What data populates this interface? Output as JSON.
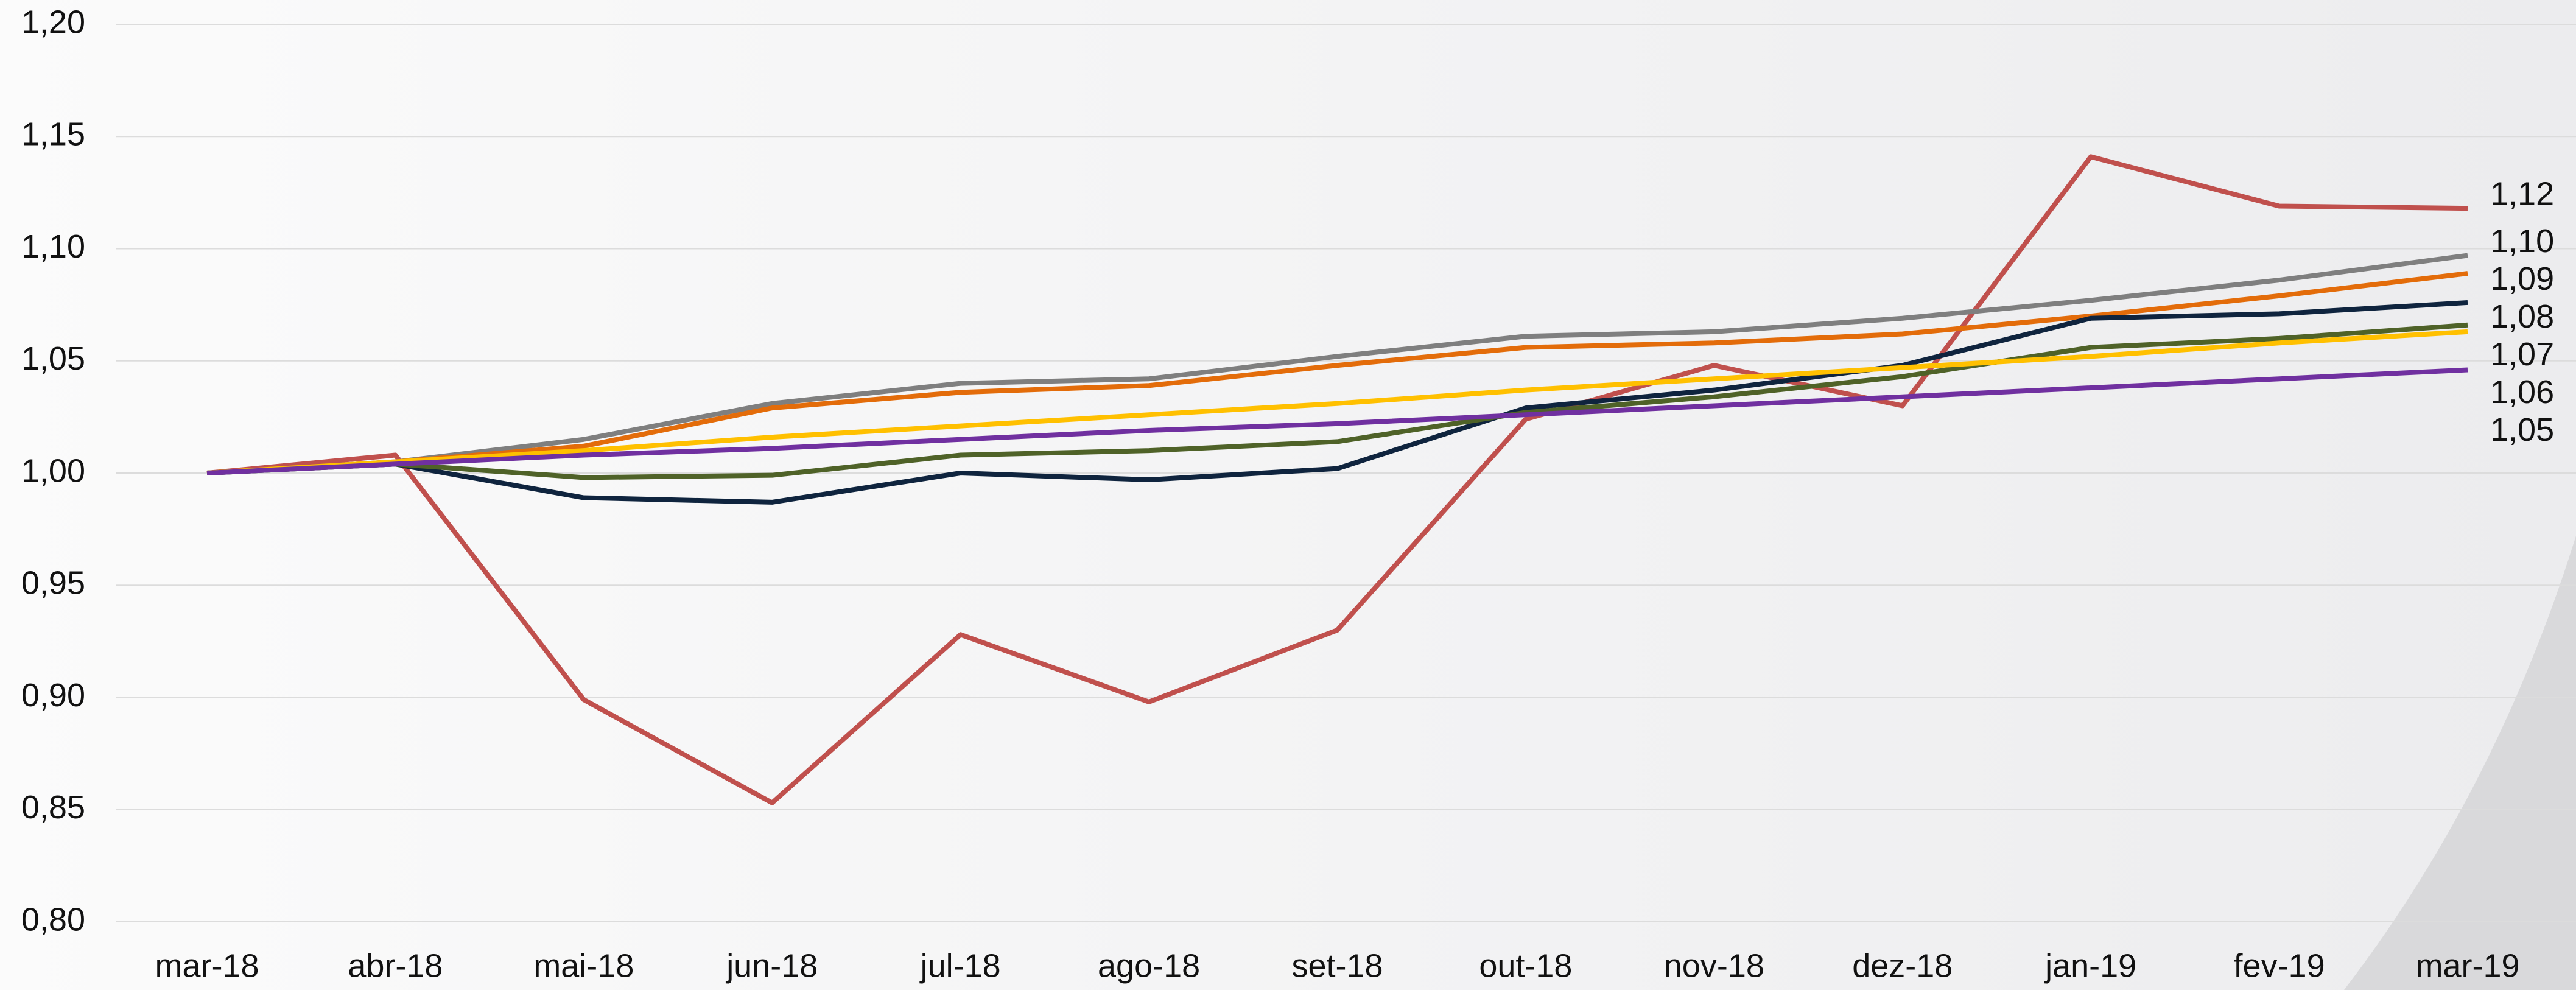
{
  "chart_data": {
    "type": "line",
    "categories": [
      "mar-18",
      "abr-18",
      "mai-18",
      "jun-18",
      "jul-18",
      "ago-18",
      "set-18",
      "out-18",
      "nov-18",
      "dez-18",
      "jan-19",
      "fev-19",
      "mar-19"
    ],
    "series": [
      {
        "color": "#c0504d",
        "values": [
          1.0,
          1.008,
          0.899,
          0.853,
          0.928,
          0.898,
          0.93,
          1.024,
          1.048,
          1.03,
          1.141,
          1.119,
          1.118
        ],
        "value_labels": [
          null,
          null,
          null,
          null,
          null,
          null,
          null,
          null,
          null,
          null,
          null,
          null,
          "1,12"
        ]
      },
      {
        "color": "#7f7f7f",
        "values": [
          1.0,
          1.005,
          1.015,
          1.031,
          1.04,
          1.042,
          1.052,
          1.061,
          1.063,
          1.069,
          1.077,
          1.086,
          1.097
        ],
        "value_labels": [
          null,
          null,
          null,
          null,
          null,
          null,
          null,
          null,
          null,
          null,
          null,
          null,
          "1,10"
        ]
      },
      {
        "color": "#e36c0a",
        "values": [
          1.0,
          1.005,
          1.012,
          1.029,
          1.036,
          1.039,
          1.048,
          1.056,
          1.058,
          1.062,
          1.07,
          1.079,
          1.089
        ],
        "value_labels": [
          null,
          null,
          null,
          null,
          null,
          null,
          null,
          null,
          null,
          null,
          null,
          null,
          "1,09"
        ]
      },
      {
        "color": "#0f243e",
        "values": [
          1.0,
          1.004,
          0.989,
          0.987,
          1.0,
          0.997,
          1.002,
          1.029,
          1.037,
          1.048,
          1.069,
          1.071,
          1.076
        ],
        "value_labels": [
          null,
          null,
          null,
          null,
          null,
          null,
          null,
          null,
          null,
          null,
          null,
          null,
          "1,08"
        ]
      },
      {
        "color": "#4f6228",
        "values": [
          1.0,
          1.004,
          0.998,
          0.999,
          1.008,
          1.01,
          1.014,
          1.027,
          1.034,
          1.043,
          1.056,
          1.06,
          1.066
        ],
        "value_labels": [
          null,
          null,
          null,
          null,
          null,
          null,
          null,
          null,
          null,
          null,
          null,
          null,
          "1,07"
        ]
      },
      {
        "color": "#ffc000",
        "values": [
          1.0,
          1.005,
          1.01,
          1.016,
          1.021,
          1.026,
          1.031,
          1.037,
          1.042,
          1.047,
          1.052,
          1.058,
          1.063
        ],
        "value_labels": [
          null,
          null,
          null,
          null,
          null,
          null,
          null,
          null,
          null,
          null,
          null,
          null,
          "1,06"
        ]
      },
      {
        "color": "#7030a0",
        "values": [
          1.0,
          1.004,
          1.008,
          1.011,
          1.015,
          1.019,
          1.022,
          1.026,
          1.03,
          1.034,
          1.038,
          1.042,
          1.046
        ],
        "value_labels": [
          null,
          null,
          null,
          null,
          null,
          null,
          null,
          null,
          null,
          null,
          null,
          null,
          "1,05"
        ]
      }
    ],
    "ylim": [
      0.8,
      1.2
    ],
    "yticks": [
      {
        "value": 0.8,
        "label": "0,80"
      },
      {
        "value": 0.85,
        "label": "0,85"
      },
      {
        "value": 0.9,
        "label": "0,90"
      },
      {
        "value": 0.95,
        "label": "0,95"
      },
      {
        "value": 1.0,
        "label": "1,00"
      },
      {
        "value": 1.05,
        "label": "1,05"
      },
      {
        "value": 1.1,
        "label": "1,10"
      },
      {
        "value": 1.15,
        "label": "1,15"
      },
      {
        "value": 1.2,
        "label": "1,20"
      }
    ],
    "grid": true
  }
}
